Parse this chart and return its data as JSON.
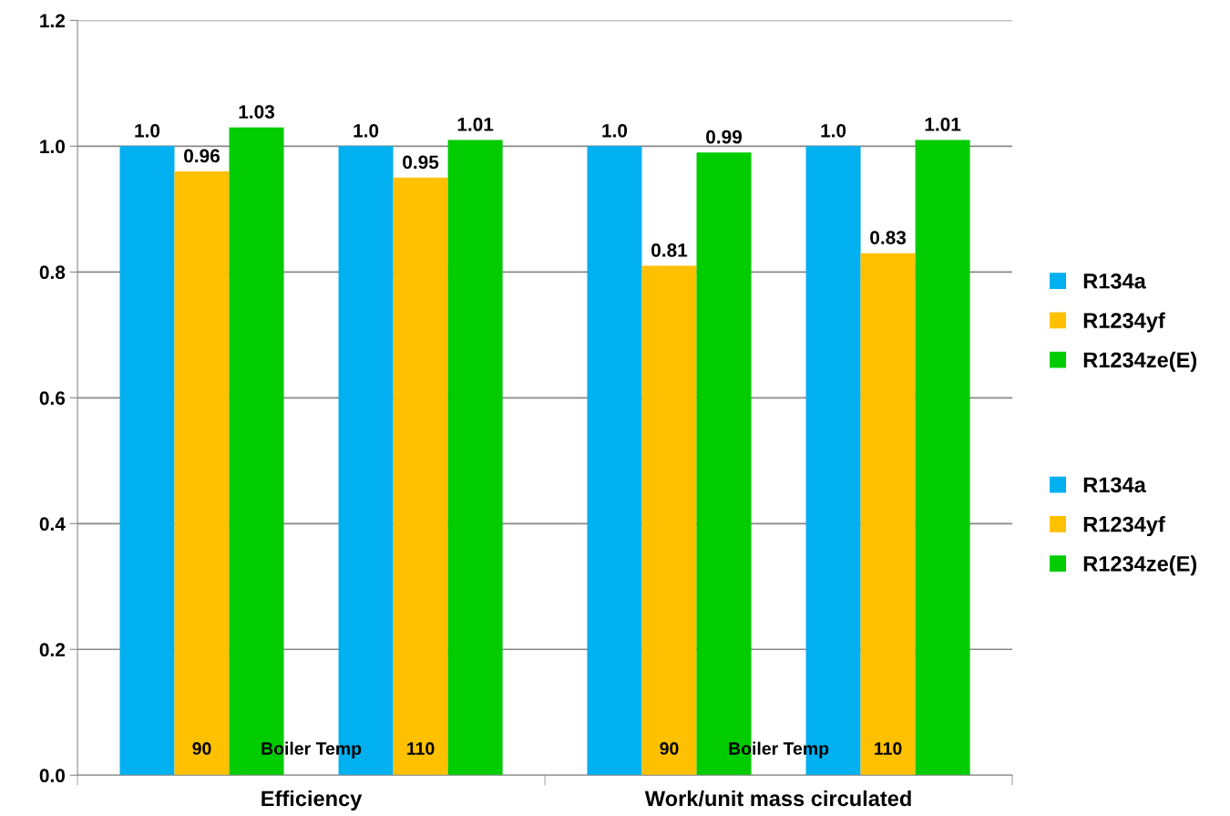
{
  "chart_data": {
    "type": "bar",
    "categories": [
      "Efficiency",
      "Work/unit mass circulated"
    ],
    "series": [
      {
        "name": "R134a",
        "color": "#00b0f0",
        "values": [
          1.0,
          1.0
        ],
        "value_labels": [
          "1.0",
          "1.0"
        ]
      },
      {
        "name": "R1234yf",
        "color": "#ffc000",
        "values": [
          0.96,
          0.81
        ],
        "value_labels": [
          "0.96",
          "0.81"
        ]
      },
      {
        "name": "R1234ze(E)",
        "color": "#00cc00",
        "values": [
          1.03,
          0.99
        ],
        "value_labels": [
          "1.03",
          "0.99"
        ]
      },
      {
        "name": "R134a",
        "color": "#00b0f0",
        "values": [
          1.0,
          1.0
        ],
        "value_labels": [
          "1.0",
          "1.0"
        ]
      },
      {
        "name": "R1234yf",
        "color": "#ffc000",
        "values": [
          0.95,
          0.83
        ],
        "value_labels": [
          "0.95",
          "0.83"
        ]
      },
      {
        "name": "R1234ze(E)",
        "color": "#00cc00",
        "values": [
          1.01,
          1.01
        ],
        "value_labels": [
          "1.01",
          "1.01"
        ]
      }
    ],
    "ylim": [
      0,
      1.2
    ],
    "yticks": [
      {
        "value": 0,
        "label": "0.0"
      },
      {
        "value": 0.2,
        "label": "0.2"
      },
      {
        "value": 0.4,
        "label": "0.4"
      },
      {
        "value": 0.6,
        "label": "0.6"
      },
      {
        "value": 0.8,
        "label": "0.8"
      },
      {
        "value": 1.0,
        "label": "1.0"
      },
      {
        "value": 1.2,
        "label": "1.2"
      }
    ],
    "grid": "y",
    "legend": "right",
    "annotations": [
      "90",
      "Boiler Temp",
      "110",
      "90",
      "Boiler Temp",
      "110"
    ]
  }
}
